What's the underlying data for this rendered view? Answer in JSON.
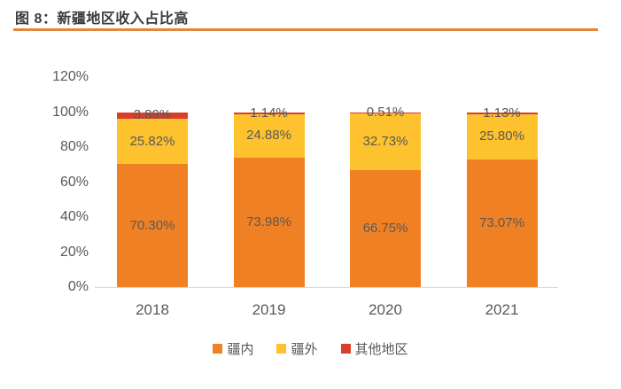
{
  "header": {
    "title": "图 8：新疆地区收入占比高"
  },
  "theme": {
    "title_color": "#3b3b3b",
    "accent_rule_orange": "#e8833a",
    "axis_line_color": "#d9d9d9",
    "label_text_color": "#595959",
    "series_orange": "#f08024",
    "series_yellow": "#fdc22d",
    "series_red": "#d83e28",
    "background": "#ffffff"
  },
  "chart_data": {
    "type": "bar",
    "stacked": true,
    "title": "图 8：新疆地区收入占比高",
    "xlabel": "",
    "ylabel": "",
    "categories": [
      "2018",
      "2019",
      "2020",
      "2021"
    ],
    "series": [
      {
        "name": "疆内",
        "key": "xinjiang-inside",
        "color": "#f08024",
        "values": [
          70.3,
          73.98,
          66.75,
          73.07
        ],
        "labels": [
          "70.30%",
          "73.98%",
          "66.75%",
          "73.07%"
        ]
      },
      {
        "name": "疆外",
        "key": "xinjiang-outside",
        "color": "#fdc22d",
        "values": [
          25.82,
          24.88,
          32.73,
          25.8
        ],
        "labels": [
          "25.82%",
          "24.88%",
          "32.73%",
          "25.80%"
        ]
      },
      {
        "name": "其他地区",
        "key": "other-regions",
        "color": "#d83e28",
        "values": [
          3.89,
          1.14,
          0.51,
          1.13
        ],
        "labels": [
          "3.89%",
          "1.14%",
          "0.51%",
          "1.13%"
        ]
      }
    ],
    "ylim": [
      0,
      120
    ],
    "yticks": [
      "0%",
      "20%",
      "40%",
      "60%",
      "80%",
      "100%",
      "120%"
    ],
    "grid": false,
    "legend_position": "bottom"
  }
}
